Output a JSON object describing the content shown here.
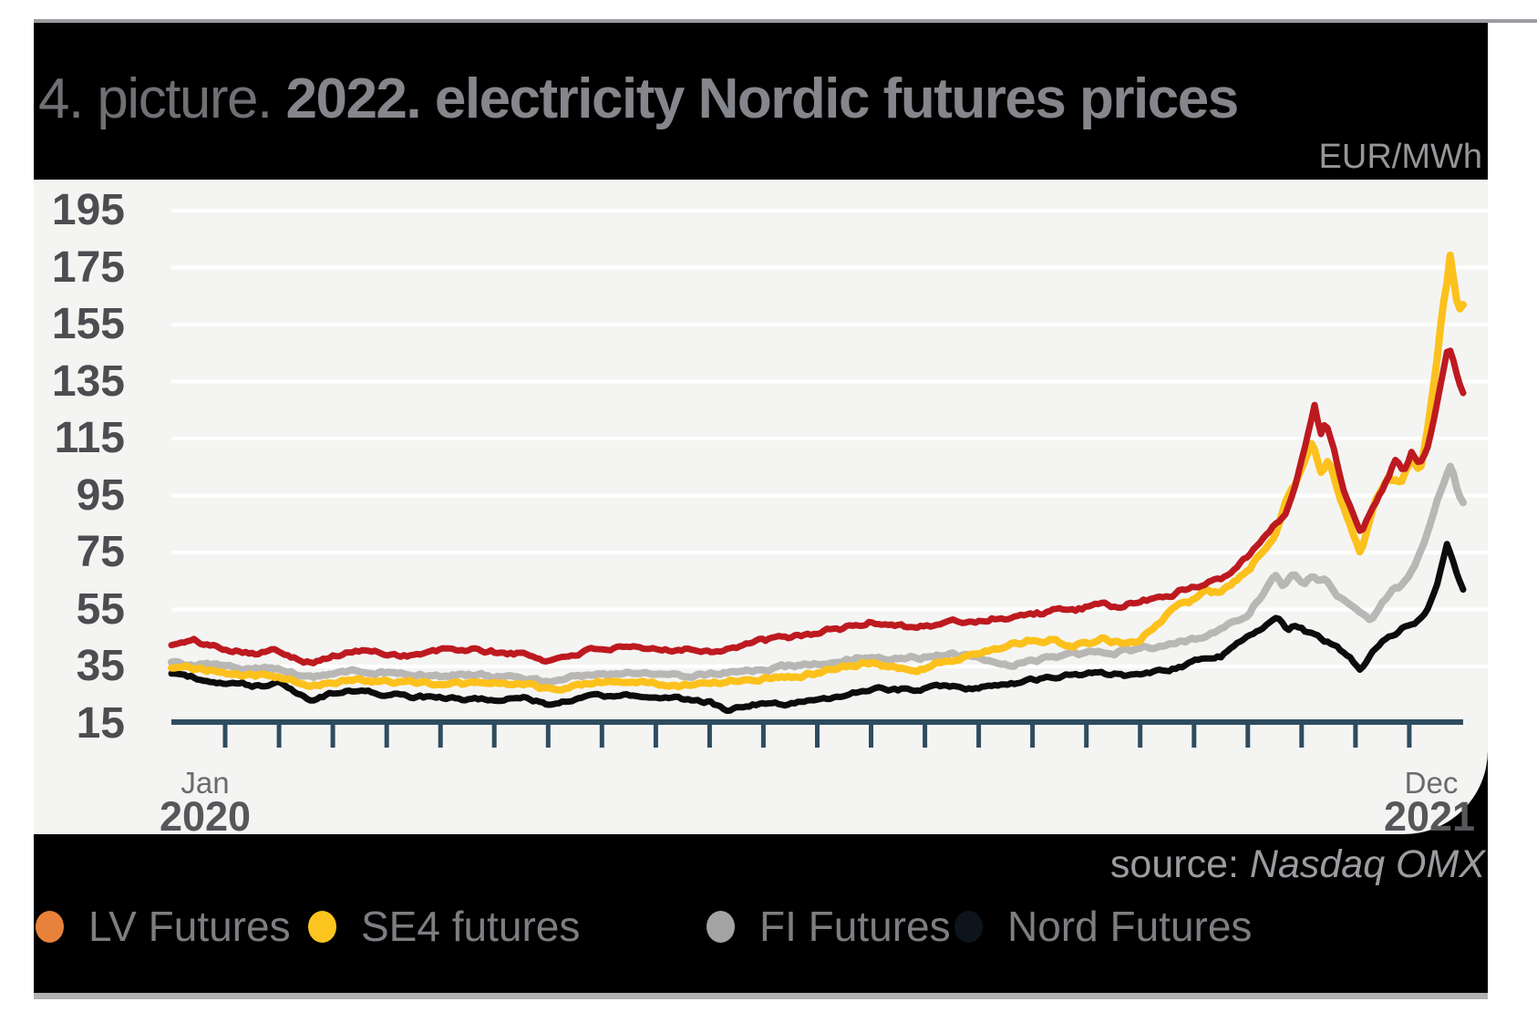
{
  "page": {
    "background": "#ffffff",
    "top_strip_color": "#9c9da0",
    "bottom_strip_color": "#b0b1b3"
  },
  "header": {
    "title_prefix": "4. picture. ",
    "title_main": "2022. electricity Nordic futures prices",
    "unit_label": "EUR/MWh",
    "background": "#000000"
  },
  "footer": {
    "source_prefix": "source: ",
    "source_name": "Nasdaq OMX",
    "background": "#000000"
  },
  "legend": {
    "items": [
      {
        "label": "LV Futures",
        "dot_color": "#e8823a"
      },
      {
        "label": "SE4 futures",
        "dot_color": "#fcc41f"
      },
      {
        "label": "FI Futures",
        "dot_color": "#a3a3a3"
      },
      {
        "label": "Nord Futures",
        "dot_color": "#0e141b"
      }
    ]
  },
  "chart_data": {
    "type": "line",
    "title": "2022. electricity Nordic futures prices",
    "ylabel": "EUR/MWh",
    "ylim": [
      15,
      205
    ],
    "y_ticks": [
      195,
      175,
      155,
      135,
      115,
      95,
      75,
      55,
      35,
      15
    ],
    "grid": true,
    "gridline_color": "#ffffff",
    "plot_bg": "#f4f5f3",
    "axis_color": "#2f4c5f",
    "x_axis": {
      "start_month": "Jan",
      "start_year": "2020",
      "end_month": "Dec",
      "end_year": "2021",
      "months_total": 24,
      "unit": "months since Jan 2020"
    },
    "series": [
      {
        "name": "LV Futures",
        "color": "#bd1a20",
        "stroke_width": 7,
        "points": [
          [
            0,
            42.5
          ],
          [
            0.4,
            44
          ],
          [
            0.8,
            42
          ],
          [
            1.2,
            41
          ],
          [
            1.6,
            40
          ],
          [
            2,
            40.5
          ],
          [
            2.3,
            38.5
          ],
          [
            2.6,
            36.5
          ],
          [
            3,
            38.5
          ],
          [
            3.5,
            40.5
          ],
          [
            4,
            39.5
          ],
          [
            4.5,
            39
          ],
          [
            5,
            40.5
          ],
          [
            5.5,
            41
          ],
          [
            6,
            40
          ],
          [
            6.5,
            39.5
          ],
          [
            7,
            37
          ],
          [
            7.5,
            39.5
          ],
          [
            8,
            41.5
          ],
          [
            8.5,
            41
          ],
          [
            9,
            40.5
          ],
          [
            9.5,
            41.5
          ],
          [
            10,
            40.5
          ],
          [
            10.5,
            42
          ],
          [
            11,
            44
          ],
          [
            11.5,
            45
          ],
          [
            12,
            47
          ],
          [
            12.5,
            48.5
          ],
          [
            13,
            50.5
          ],
          [
            13.4,
            50
          ],
          [
            14,
            49
          ],
          [
            14.5,
            50.5
          ],
          [
            15,
            51
          ],
          [
            15.5,
            52.5
          ],
          [
            16,
            53.5
          ],
          [
            16.5,
            54.5
          ],
          [
            17,
            55.5
          ],
          [
            17.5,
            56
          ],
          [
            18,
            57.5
          ],
          [
            18.5,
            60
          ],
          [
            19,
            63
          ],
          [
            19.5,
            66.5
          ],
          [
            20,
            74
          ],
          [
            20.3,
            80
          ],
          [
            20.5,
            84
          ],
          [
            20.7,
            89
          ],
          [
            20.9,
            100
          ],
          [
            21.1,
            115
          ],
          [
            21.24,
            127
          ],
          [
            21.35,
            117
          ],
          [
            21.45,
            121
          ],
          [
            21.6,
            112
          ],
          [
            21.8,
            95
          ],
          [
            22.1,
            82.5
          ],
          [
            22.3,
            90
          ],
          [
            22.5,
            97
          ],
          [
            22.75,
            108
          ],
          [
            22.9,
            104
          ],
          [
            23.05,
            111
          ],
          [
            23.2,
            106
          ],
          [
            23.35,
            113
          ],
          [
            23.5,
            126
          ],
          [
            23.65,
            140
          ],
          [
            23.72,
            147
          ],
          [
            23.8,
            143
          ],
          [
            23.9,
            136
          ],
          [
            24,
            131
          ]
        ]
      },
      {
        "name": "SE4 futures",
        "color": "#fcc11c",
        "stroke_width": 8,
        "points": [
          [
            0,
            34.5
          ],
          [
            0.5,
            34
          ],
          [
            1,
            33
          ],
          [
            1.5,
            32
          ],
          [
            2,
            31
          ],
          [
            2.3,
            29.5
          ],
          [
            2.6,
            28
          ],
          [
            3,
            29.5
          ],
          [
            3.5,
            30.5
          ],
          [
            4,
            29.8
          ],
          [
            4.5,
            29.3
          ],
          [
            5,
            29
          ],
          [
            5.5,
            28.8
          ],
          [
            6,
            29
          ],
          [
            6.5,
            29
          ],
          [
            7,
            26.8
          ],
          [
            7.5,
            28.5
          ],
          [
            8,
            29.5
          ],
          [
            8.5,
            29.5
          ],
          [
            9,
            29
          ],
          [
            9.5,
            28.4
          ],
          [
            10,
            29
          ],
          [
            10.5,
            30
          ],
          [
            11,
            31.2
          ],
          [
            11.5,
            31.5
          ],
          [
            12,
            33
          ],
          [
            12.5,
            35.5
          ],
          [
            13,
            36.5
          ],
          [
            13.4,
            34.8
          ],
          [
            14,
            34.5
          ],
          [
            14.5,
            37.5
          ],
          [
            15,
            39.5
          ],
          [
            15.5,
            42.5
          ],
          [
            16,
            44.3
          ],
          [
            16.4,
            45
          ],
          [
            16.7,
            41.7
          ],
          [
            17,
            42.5
          ],
          [
            17.3,
            45
          ],
          [
            17.6,
            43.5
          ],
          [
            18,
            44.5
          ],
          [
            18.3,
            50
          ],
          [
            18.6,
            55
          ],
          [
            19,
            58
          ],
          [
            19.2,
            62
          ],
          [
            19.5,
            61
          ],
          [
            20,
            68.5
          ],
          [
            20.3,
            76
          ],
          [
            20.5,
            80
          ],
          [
            20.7,
            92
          ],
          [
            20.9,
            99
          ],
          [
            21.05,
            107
          ],
          [
            21.2,
            114.5
          ],
          [
            21.35,
            104
          ],
          [
            21.5,
            108
          ],
          [
            21.7,
            95
          ],
          [
            21.9,
            84
          ],
          [
            22.1,
            74.5
          ],
          [
            22.35,
            92
          ],
          [
            22.6,
            101
          ],
          [
            22.85,
            99
          ],
          [
            23.05,
            109
          ],
          [
            23.2,
            103
          ],
          [
            23.35,
            120
          ],
          [
            23.5,
            140
          ],
          [
            23.62,
            162
          ],
          [
            23.7,
            170
          ],
          [
            23.77,
            181
          ],
          [
            23.85,
            166
          ],
          [
            23.95,
            160
          ],
          [
            24,
            162
          ]
        ]
      },
      {
        "name": "FI Futures",
        "color": "#b8b7b5",
        "stroke_width": 8,
        "points": [
          [
            0,
            36.5
          ],
          [
            0.5,
            36
          ],
          [
            1,
            35
          ],
          [
            1.5,
            34
          ],
          [
            2,
            34.5
          ],
          [
            2.3,
            33
          ],
          [
            2.6,
            31
          ],
          [
            3,
            32.5
          ],
          [
            3.5,
            33.5
          ],
          [
            4,
            32.8
          ],
          [
            4.5,
            32.3
          ],
          [
            5,
            32
          ],
          [
            5.5,
            31.8
          ],
          [
            6,
            31.5
          ],
          [
            6.5,
            31.2
          ],
          [
            7,
            29.5
          ],
          [
            7.5,
            31.5
          ],
          [
            8,
            32
          ],
          [
            8.5,
            32.5
          ],
          [
            9,
            32.5
          ],
          [
            9.5,
            32
          ],
          [
            10,
            32.2
          ],
          [
            10.5,
            33
          ],
          [
            11,
            34.2
          ],
          [
            11.5,
            35
          ],
          [
            12,
            35.5
          ],
          [
            12.5,
            37.5
          ],
          [
            13,
            39
          ],
          [
            13.4,
            38
          ],
          [
            14,
            38.2
          ],
          [
            14.5,
            39.2
          ],
          [
            15,
            38
          ],
          [
            15.5,
            36
          ],
          [
            16,
            36.5
          ],
          [
            16.5,
            38.5
          ],
          [
            17,
            39.6
          ],
          [
            17.5,
            40
          ],
          [
            18,
            41
          ],
          [
            18.5,
            43
          ],
          [
            19,
            44.5
          ],
          [
            19.5,
            48.5
          ],
          [
            20,
            54
          ],
          [
            20.25,
            60
          ],
          [
            20.5,
            68
          ],
          [
            20.65,
            63.5
          ],
          [
            20.85,
            69
          ],
          [
            21.05,
            64
          ],
          [
            21.2,
            66.5
          ],
          [
            21.45,
            65
          ],
          [
            21.7,
            58
          ],
          [
            21.9,
            57
          ],
          [
            22.1,
            53.5
          ],
          [
            22.3,
            51
          ],
          [
            22.5,
            58
          ],
          [
            22.7,
            62
          ],
          [
            22.9,
            64
          ],
          [
            23.1,
            70
          ],
          [
            23.3,
            80
          ],
          [
            23.5,
            92
          ],
          [
            23.65,
            100
          ],
          [
            23.78,
            105.5
          ],
          [
            23.9,
            96
          ],
          [
            24,
            92.5
          ]
        ]
      },
      {
        "name": "Nord Futures",
        "color": "#0c0c0c",
        "stroke_width": 7,
        "points": [
          [
            0,
            32.5
          ],
          [
            0.5,
            31
          ],
          [
            1,
            29.5
          ],
          [
            1.5,
            28.5
          ],
          [
            2,
            29
          ],
          [
            2.3,
            26
          ],
          [
            2.6,
            23
          ],
          [
            3,
            25.5
          ],
          [
            3.5,
            26.5
          ],
          [
            4,
            25.5
          ],
          [
            4.5,
            24.5
          ],
          [
            5,
            24
          ],
          [
            5.5,
            23.5
          ],
          [
            6,
            23.5
          ],
          [
            6.5,
            24.5
          ],
          [
            7,
            21.5
          ],
          [
            7.5,
            23.5
          ],
          [
            8,
            24.5
          ],
          [
            8.5,
            24.5
          ],
          [
            9,
            24
          ],
          [
            9.5,
            23.5
          ],
          [
            10,
            22.5
          ],
          [
            10.3,
            19.5
          ],
          [
            10.7,
            21.5
          ],
          [
            11,
            22
          ],
          [
            11.5,
            22
          ],
          [
            12,
            23
          ],
          [
            12.5,
            25
          ],
          [
            13,
            27.4
          ],
          [
            13.4,
            26.7
          ],
          [
            14,
            27.2
          ],
          [
            14.5,
            28
          ],
          [
            15,
            27.5
          ],
          [
            15.5,
            28.4
          ],
          [
            16,
            30
          ],
          [
            16.5,
            31.6
          ],
          [
            17,
            32.5
          ],
          [
            17.5,
            32.2
          ],
          [
            18,
            31.5
          ],
          [
            18.5,
            33.5
          ],
          [
            19,
            36.4
          ],
          [
            19.5,
            38.5
          ],
          [
            20,
            45
          ],
          [
            20.3,
            49
          ],
          [
            20.55,
            53
          ],
          [
            20.75,
            47.5
          ],
          [
            20.9,
            49.5
          ],
          [
            21.2,
            46
          ],
          [
            21.5,
            43.5
          ],
          [
            21.7,
            41
          ],
          [
            21.9,
            38.5
          ],
          [
            22.1,
            33.5
          ],
          [
            22.3,
            40
          ],
          [
            22.5,
            44
          ],
          [
            22.7,
            46.5
          ],
          [
            22.9,
            49
          ],
          [
            23.1,
            50.5
          ],
          [
            23.3,
            53
          ],
          [
            23.5,
            62
          ],
          [
            23.7,
            77.5
          ],
          [
            23.8,
            72
          ],
          [
            23.9,
            66
          ],
          [
            24,
            62
          ]
        ]
      }
    ]
  }
}
